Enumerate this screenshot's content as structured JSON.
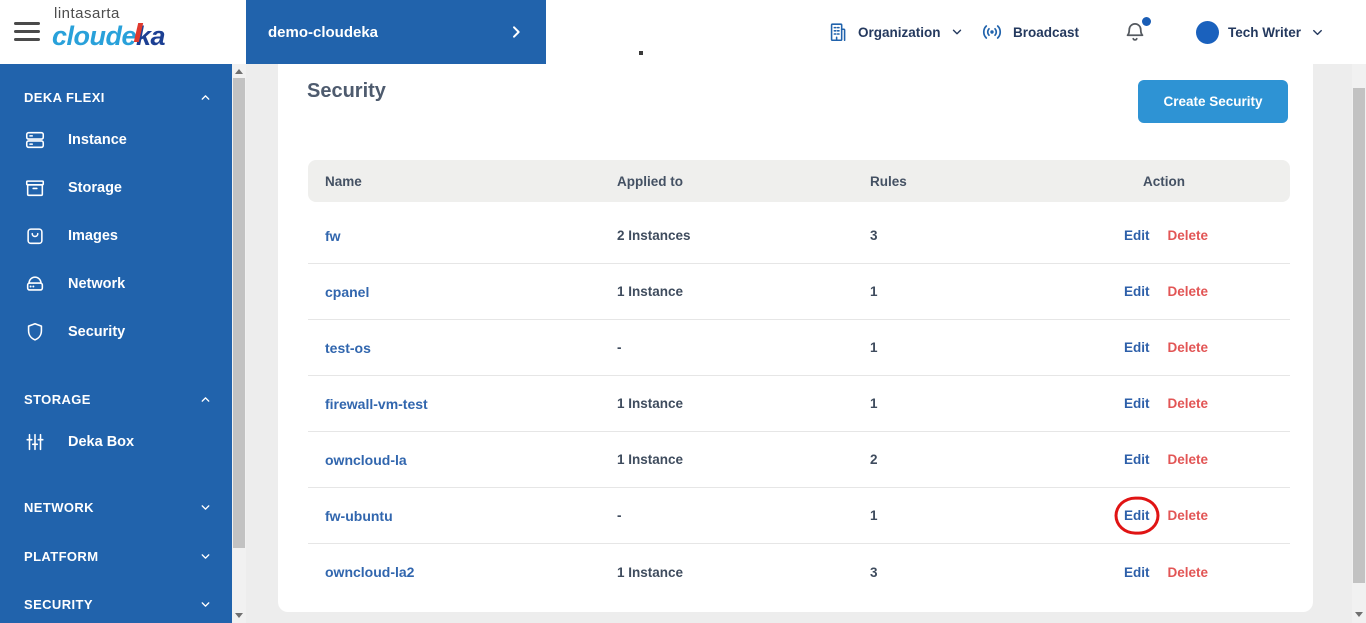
{
  "colors": {
    "sidebar_blue": "#2163ac",
    "button_blue": "#2e93d4",
    "link_blue": "#2d5fa9",
    "name_blue": "#3166ae",
    "delete_red": "#e25555",
    "annotation_red": "#e01414",
    "avatar_blue": "#1a61bd",
    "header_text": "#24395e"
  },
  "header": {
    "logo": {
      "company": "lintasarta",
      "brand_part1": "cloude",
      "brand_part2": "ka"
    },
    "project": {
      "label": "demo-cloudeka"
    },
    "organization_label": "Organization",
    "broadcast_label": "Broadcast",
    "user": {
      "name": "Tech Writer"
    }
  },
  "sidebar": {
    "sections": [
      {
        "label": "DEKA FLEXI",
        "expanded": true,
        "items": [
          {
            "icon": "instance-icon",
            "label": "Instance"
          },
          {
            "icon": "storage-icon",
            "label": "Storage"
          },
          {
            "icon": "images-icon",
            "label": "Images"
          },
          {
            "icon": "network-icon",
            "label": "Network"
          },
          {
            "icon": "security-icon",
            "label": "Security"
          }
        ]
      },
      {
        "label": "STORAGE",
        "expanded": true,
        "items": [
          {
            "icon": "deka-box-icon",
            "label": "Deka Box"
          }
        ]
      },
      {
        "label": "NETWORK",
        "expanded": false,
        "items": []
      },
      {
        "label": "PLATFORM",
        "expanded": false,
        "items": []
      },
      {
        "label": "SECURITY",
        "expanded": false,
        "items": []
      }
    ]
  },
  "main": {
    "title": "Security",
    "create_button_label": "Create Security",
    "table": {
      "columns": [
        "Name",
        "Applied to",
        "Rules",
        "Action"
      ],
      "actions": {
        "edit": "Edit",
        "delete": "Delete"
      },
      "rows": [
        {
          "name": "fw",
          "applied_to": "2 Instances",
          "rules": "3",
          "annotated": false
        },
        {
          "name": "cpanel",
          "applied_to": "1 Instance",
          "rules": "1",
          "annotated": false
        },
        {
          "name": "test-os",
          "applied_to": "-",
          "rules": "1",
          "annotated": false
        },
        {
          "name": "firewall-vm-test",
          "applied_to": "1 Instance",
          "rules": "1",
          "annotated": false
        },
        {
          "name": "owncloud-la",
          "applied_to": "1 Instance",
          "rules": "2",
          "annotated": false
        },
        {
          "name": "fw-ubuntu",
          "applied_to": "-",
          "rules": "1",
          "annotated": true
        },
        {
          "name": "owncloud-la2",
          "applied_to": "1 Instance",
          "rules": "3",
          "annotated": false
        }
      ]
    }
  }
}
